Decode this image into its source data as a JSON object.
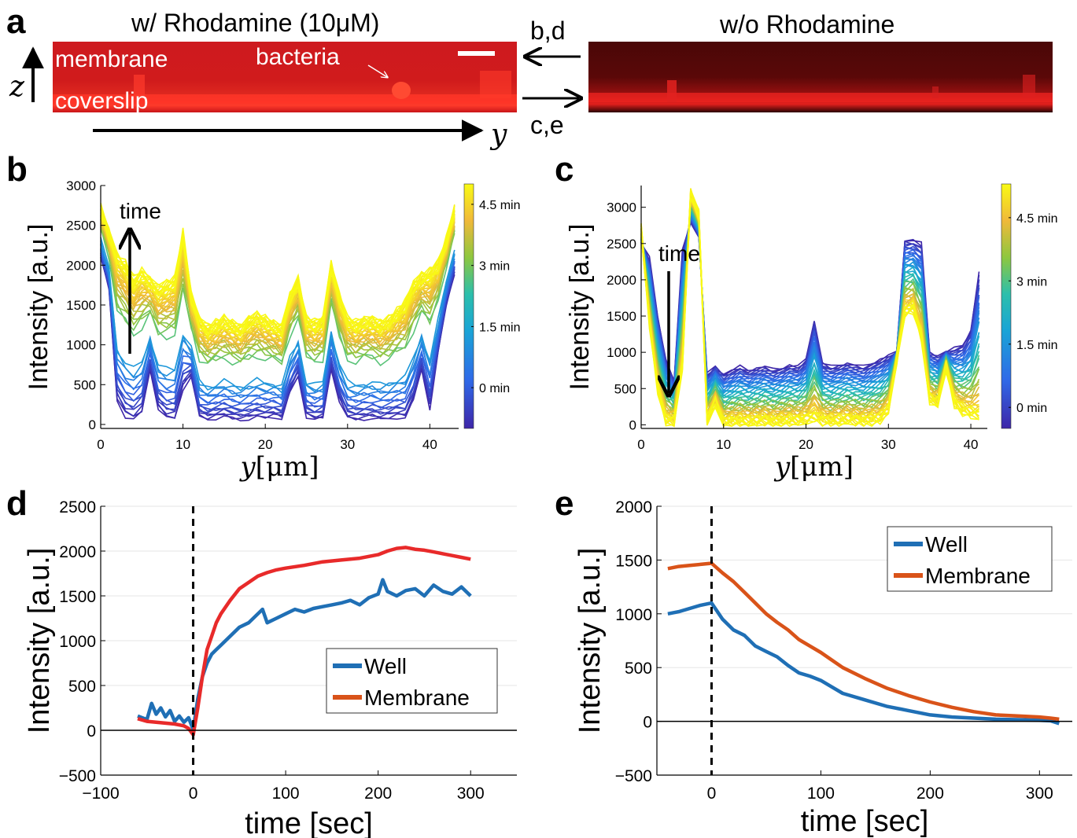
{
  "panel_a": {
    "label": "a",
    "title_left": "w/ Rhodamine (10μM)",
    "title_right": "w/o Rhodamine",
    "labels": {
      "membrane": "membrane",
      "bacteria": "bacteria",
      "coverslip": "coverslip"
    },
    "arrow_top_label": "b,d",
    "arrow_bottom_label": "c,e",
    "z_axis_label": "z",
    "y_axis_label": "y"
  },
  "chart_data": [
    {
      "id": "b",
      "label": "b",
      "type": "line",
      "xlabel_var": "y",
      "xlabel_unit": "[μm]",
      "ylabel": "Intensity [a.u.]",
      "xlim": [
        0,
        43.5
      ],
      "ylim": [
        -50,
        3000
      ],
      "xticks": [
        0,
        10,
        20,
        30,
        40
      ],
      "yticks": [
        0,
        500,
        1000,
        1500,
        2000,
        2500,
        3000
      ],
      "annotation": "time",
      "annotation_direction": "up",
      "colorbar": {
        "ticks": [
          "0 min",
          "1.5 min",
          "3 min",
          "4.5 min"
        ],
        "tick_values": [
          0,
          1.5,
          3,
          4.5
        ],
        "range": [
          -1,
          5
        ]
      },
      "n_curves": 48,
      "profile_x": [
        0,
        1,
        2,
        3,
        4,
        5,
        6,
        7,
        8,
        9,
        10,
        11,
        12,
        13,
        14,
        15,
        16,
        17,
        18,
        19,
        20,
        21,
        22,
        23,
        24,
        25,
        26,
        27,
        28,
        29,
        30,
        31,
        32,
        33,
        34,
        35,
        36,
        37,
        38,
        39,
        40,
        41,
        42,
        43
      ],
      "profile_start": [
        2100,
        1700,
        300,
        100,
        60,
        150,
        700,
        200,
        80,
        70,
        450,
        600,
        100,
        60,
        80,
        100,
        70,
        60,
        70,
        90,
        80,
        100,
        70,
        400,
        600,
        100,
        60,
        80,
        700,
        300,
        80,
        60,
        70,
        80,
        60,
        70,
        90,
        80,
        300,
        700,
        200,
        900,
        1500,
        1900
      ],
      "profile_end": [
        2700,
        2400,
        2100,
        2000,
        1800,
        1900,
        1800,
        1700,
        1750,
        1800,
        2400,
        1600,
        1300,
        1200,
        1250,
        1300,
        1250,
        1200,
        1300,
        1350,
        1300,
        1250,
        1200,
        1600,
        1800,
        1300,
        1250,
        1300,
        2000,
        1600,
        1300,
        1250,
        1300,
        1300,
        1250,
        1300,
        1400,
        1500,
        1750,
        1850,
        1900,
        2000,
        2300,
        2700
      ],
      "curve_levels": [
        0,
        0.02,
        0.04,
        0.06,
        0.08,
        0.1,
        0.12,
        0.15,
        0.18,
        0.21,
        0.24,
        0.27,
        0.3,
        0.33,
        0.36,
        0.62,
        0.66,
        0.69,
        0.72,
        0.74,
        0.76,
        0.78,
        0.8,
        0.82,
        0.83,
        0.84,
        0.85,
        0.86,
        0.87,
        0.88,
        0.89,
        0.9,
        0.91,
        0.92,
        0.93,
        0.94,
        0.95,
        0.96,
        0.965,
        0.97,
        0.975,
        0.98,
        0.985,
        0.99,
        0.993,
        0.996,
        0.998,
        1.0
      ]
    },
    {
      "id": "c",
      "label": "c",
      "type": "line",
      "xlabel_var": "y",
      "xlabel_unit": "[μm]",
      "ylabel": "Intensity [a.u.]",
      "xlim": [
        0,
        42
      ],
      "ylim": [
        -50,
        3300
      ],
      "xticks": [
        0,
        10,
        20,
        30,
        40
      ],
      "yticks": [
        0,
        500,
        1000,
        1500,
        2000,
        2500,
        3000
      ],
      "annotation": "time",
      "annotation_direction": "down",
      "colorbar": {
        "ticks": [
          "0 min",
          "1.5 min",
          "3 min",
          "4.5 min"
        ],
        "tick_values": [
          0,
          1.5,
          3,
          4.5
        ],
        "range": [
          -0.5,
          5.3
        ]
      },
      "n_curves": 48,
      "profile_x": [
        0,
        1,
        2,
        3,
        4,
        5,
        6,
        7,
        8,
        9,
        10,
        11,
        12,
        13,
        14,
        15,
        16,
        17,
        18,
        19,
        20,
        21,
        22,
        23,
        24,
        25,
        26,
        27,
        28,
        29,
        30,
        31,
        32,
        33,
        34,
        35,
        36,
        37,
        38,
        39,
        40,
        41
      ],
      "profile_start": [
        2500,
        2300,
        1500,
        900,
        600,
        2400,
        2800,
        2600,
        700,
        800,
        700,
        750,
        800,
        750,
        780,
        800,
        760,
        780,
        820,
        800,
        900,
        1450,
        850,
        800,
        820,
        850,
        820,
        800,
        850,
        900,
        950,
        1000,
        2550,
        2550,
        2500,
        1000,
        950,
        1000,
        1050,
        1100,
        1300,
        2100
      ],
      "profile_end": [
        2700,
        1400,
        500,
        50,
        40,
        800,
        3200,
        2900,
        50,
        300,
        20,
        30,
        40,
        30,
        40,
        50,
        30,
        40,
        50,
        40,
        60,
        100,
        50,
        40,
        50,
        60,
        50,
        40,
        60,
        80,
        200,
        900,
        1550,
        1600,
        1200,
        350,
        300,
        800,
        300,
        200,
        150,
        100
      ],
      "curve_levels": [
        0,
        0.02,
        0.04,
        0.06,
        0.08,
        0.1,
        0.12,
        0.14,
        0.16,
        0.18,
        0.2,
        0.22,
        0.24,
        0.26,
        0.28,
        0.3,
        0.33,
        0.36,
        0.39,
        0.42,
        0.45,
        0.48,
        0.51,
        0.54,
        0.57,
        0.6,
        0.63,
        0.66,
        0.69,
        0.72,
        0.75,
        0.78,
        0.8,
        0.82,
        0.84,
        0.86,
        0.88,
        0.9,
        0.92,
        0.94,
        0.95,
        0.96,
        0.97,
        0.98,
        0.985,
        0.99,
        0.995,
        1.0
      ]
    },
    {
      "id": "d",
      "label": "d",
      "type": "line",
      "xlabel": "time [sec]",
      "ylabel": "Intensity [a.u.]",
      "xlim": [
        -100,
        350
      ],
      "ylim": [
        -500,
        2500
      ],
      "xticks": [
        -100,
        0,
        100,
        200,
        300
      ],
      "xtick_labels": [
        "−100",
        "0",
        "100",
        "200",
        "300"
      ],
      "yticks": [
        -500,
        0,
        500,
        1000,
        1500,
        2000,
        2500
      ],
      "ytick_labels": [
        "−500",
        "0",
        "500",
        "1000",
        "1500",
        "2000",
        "2500"
      ],
      "vline_x": 0,
      "hline_y": 0,
      "legend_position": "lower-right",
      "series": [
        {
          "name": "Well",
          "color": "#1f6fb5",
          "x": [
            -60,
            -50,
            -45,
            -40,
            -35,
            -30,
            -25,
            -20,
            -15,
            -10,
            -5,
            0,
            5,
            10,
            15,
            20,
            25,
            30,
            40,
            50,
            60,
            70,
            75,
            80,
            90,
            100,
            110,
            120,
            130,
            140,
            150,
            160,
            170,
            180,
            190,
            200,
            205,
            210,
            220,
            230,
            240,
            250,
            260,
            270,
            280,
            290,
            300
          ],
          "y": [
            160,
            120,
            300,
            180,
            250,
            150,
            220,
            100,
            160,
            90,
            140,
            10,
            350,
            600,
            750,
            850,
            900,
            950,
            1050,
            1150,
            1200,
            1300,
            1350,
            1200,
            1250,
            1300,
            1350,
            1320,
            1360,
            1380,
            1400,
            1420,
            1450,
            1400,
            1480,
            1520,
            1680,
            1550,
            1500,
            1560,
            1580,
            1500,
            1620,
            1550,
            1520,
            1600,
            1500
          ]
        },
        {
          "name": "Membrane",
          "color": "#e82a2a",
          "legend_color": "#d95319",
          "x": [
            -60,
            -50,
            -40,
            -30,
            -20,
            -10,
            -5,
            0,
            5,
            10,
            15,
            20,
            25,
            30,
            40,
            50,
            60,
            70,
            80,
            90,
            100,
            120,
            140,
            160,
            180,
            200,
            210,
            220,
            230,
            240,
            250,
            260,
            270,
            280,
            290,
            300
          ],
          "y": [
            130,
            100,
            90,
            80,
            70,
            50,
            20,
            -50,
            250,
            600,
            900,
            1050,
            1200,
            1300,
            1450,
            1580,
            1650,
            1720,
            1760,
            1790,
            1810,
            1840,
            1880,
            1900,
            1920,
            1960,
            2000,
            2030,
            2040,
            2020,
            2010,
            1990,
            1970,
            1950,
            1930,
            1910
          ]
        }
      ]
    },
    {
      "id": "e",
      "label": "e",
      "type": "line",
      "xlabel": "time [sec]",
      "ylabel": "Intensity [a.u.]",
      "xlim": [
        -50,
        330
      ],
      "ylim": [
        -500,
        2000
      ],
      "xticks": [
        0,
        100,
        200,
        300
      ],
      "yticks": [
        -500,
        0,
        500,
        1000,
        1500,
        2000
      ],
      "ytick_labels": [
        "−500",
        "0",
        "500",
        "1000",
        "1500",
        "2000"
      ],
      "vline_x": 0,
      "hline_y": 0,
      "legend_position": "upper-right",
      "series": [
        {
          "name": "Well",
          "color": "#1f6fb5",
          "x": [
            -40,
            -30,
            -20,
            -10,
            0,
            10,
            20,
            30,
            40,
            50,
            60,
            70,
            80,
            90,
            100,
            110,
            120,
            140,
            160,
            180,
            200,
            220,
            240,
            260,
            280,
            300,
            310,
            318
          ],
          "y": [
            1000,
            1020,
            1050,
            1080,
            1100,
            950,
            850,
            800,
            700,
            650,
            600,
            520,
            450,
            420,
            380,
            320,
            260,
            200,
            140,
            100,
            60,
            40,
            30,
            20,
            15,
            10,
            5,
            -20
          ]
        },
        {
          "name": "Membrane",
          "color": "#d95319",
          "x": [
            -40,
            -30,
            -20,
            -10,
            0,
            10,
            20,
            30,
            40,
            50,
            60,
            70,
            80,
            90,
            100,
            110,
            120,
            140,
            160,
            180,
            200,
            220,
            240,
            260,
            280,
            300,
            310,
            318
          ],
          "y": [
            1420,
            1440,
            1450,
            1460,
            1470,
            1380,
            1300,
            1200,
            1100,
            1000,
            920,
            850,
            760,
            700,
            640,
            570,
            500,
            400,
            310,
            240,
            180,
            130,
            90,
            60,
            50,
            40,
            30,
            20
          ]
        }
      ]
    }
  ]
}
